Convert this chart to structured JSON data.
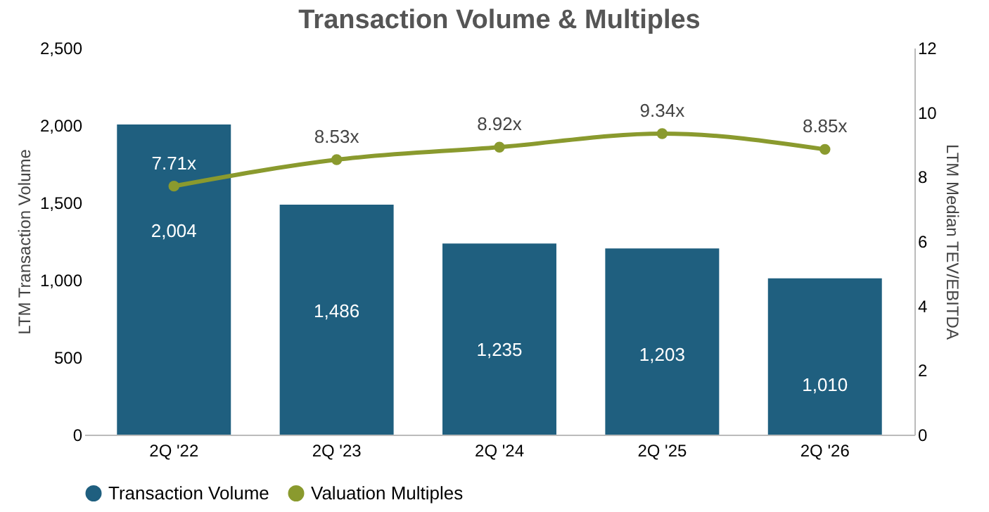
{
  "chart_data": {
    "type": "bar",
    "title": "Transaction Volume & Multiples",
    "categories": [
      "2Q '22",
      "2Q '23",
      "2Q '24",
      "2Q '25",
      "2Q '26"
    ],
    "ylabel": "LTM Transaction Volume",
    "y2label": "LTM Median TEV/EBITDA",
    "ylim": [
      0,
      2500
    ],
    "yticks": [
      0,
      500,
      {
        "value": 1000,
        "label": "1,000"
      },
      {
        "value": 1500,
        "label": "1,500"
      },
      {
        "value": 2000,
        "label": "2,000"
      },
      {
        "value": 2500,
        "label": "2,500"
      }
    ],
    "y2lim": [
      0,
      12
    ],
    "y2ticks": [
      0,
      2,
      4,
      6,
      8,
      10,
      12
    ],
    "series": [
      {
        "name": "Transaction Volume",
        "color": "#1f5f7f",
        "values": [
          2004,
          1486,
          1235,
          1203,
          1010
        ],
        "value_labels": [
          "2,004",
          "1,486",
          "1,235",
          "1,203",
          "1,010"
        ]
      },
      {
        "name": "Valuation Multiples",
        "type": "line",
        "axis": "y2",
        "color": "#8a9a2e",
        "marker": "circle",
        "values": [
          7.71,
          8.53,
          8.92,
          9.34,
          8.85
        ],
        "value_labels": [
          "7.71x",
          "8.53x",
          "8.92x",
          "9.34x",
          "8.85x"
        ]
      }
    ],
    "legend": "bottom"
  }
}
